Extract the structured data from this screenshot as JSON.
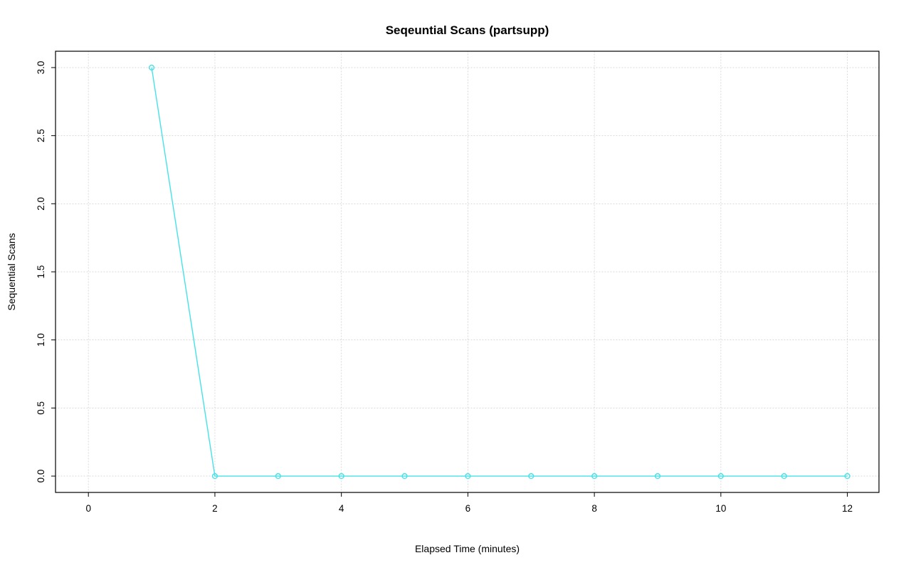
{
  "chart_data": {
    "type": "line",
    "title": "Seqeuntial Scans (partsupp)",
    "xlabel": "Elapsed Time (minutes)",
    "ylabel": "Sequential Scans",
    "x": [
      1,
      2,
      3,
      4,
      5,
      6,
      7,
      8,
      9,
      10,
      11,
      12
    ],
    "y": [
      3,
      0,
      0,
      0,
      0,
      0,
      0,
      0,
      0,
      0,
      0,
      0
    ],
    "xticks": [
      0,
      2,
      4,
      6,
      8,
      10,
      12
    ],
    "yticks": [
      0.0,
      0.5,
      1.0,
      1.5,
      2.0,
      2.5,
      3.0
    ],
    "xlim": [
      -0.52,
      12.5
    ],
    "ylim": [
      -0.12,
      3.12
    ],
    "grid": true,
    "legend": "none",
    "marker": "open-circle",
    "series_color": "#45e2e9",
    "grid_color": "#d6d6d6",
    "box_color": "#000000"
  }
}
